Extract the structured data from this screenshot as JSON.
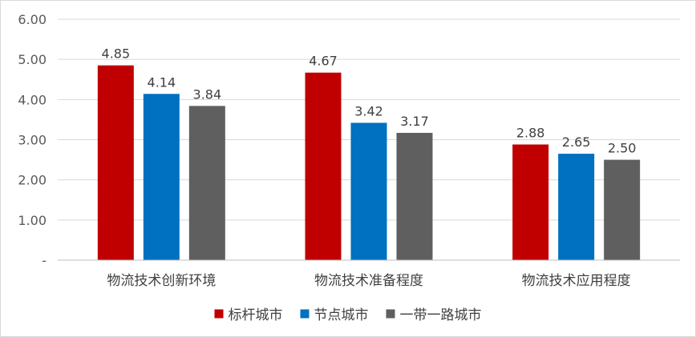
{
  "chart_data": {
    "type": "bar",
    "title": "",
    "xlabel": "",
    "ylabel": "",
    "ylim": [
      0,
      6
    ],
    "yticks": [
      {
        "value": 0,
        "label": "-"
      },
      {
        "value": 1,
        "label": "1.00"
      },
      {
        "value": 2,
        "label": "2.00"
      },
      {
        "value": 3,
        "label": "3.00"
      },
      {
        "value": 4,
        "label": "4.00"
      },
      {
        "value": 5,
        "label": "5.00"
      },
      {
        "value": 6,
        "label": "6.00"
      }
    ],
    "grid": true,
    "legend_position": "bottom",
    "categories": [
      "物流技术创新环境",
      "物流技术准备程度",
      "物流技术应用程度"
    ],
    "series": [
      {
        "name": "标杆城市",
        "color": "#c00000",
        "values": [
          4.85,
          4.67,
          2.88
        ],
        "labels": [
          "4.85",
          "4.67",
          "2.88"
        ]
      },
      {
        "name": "节点城市",
        "color": "#0070c0",
        "values": [
          4.14,
          3.42,
          2.65
        ],
        "labels": [
          "4.14",
          "3.42",
          "2.65"
        ]
      },
      {
        "name": "一带一路城市",
        "color": "#5f5f5f",
        "values": [
          3.84,
          3.17,
          2.5
        ],
        "labels": [
          "3.84",
          "3.17",
          "2.50"
        ]
      }
    ]
  }
}
